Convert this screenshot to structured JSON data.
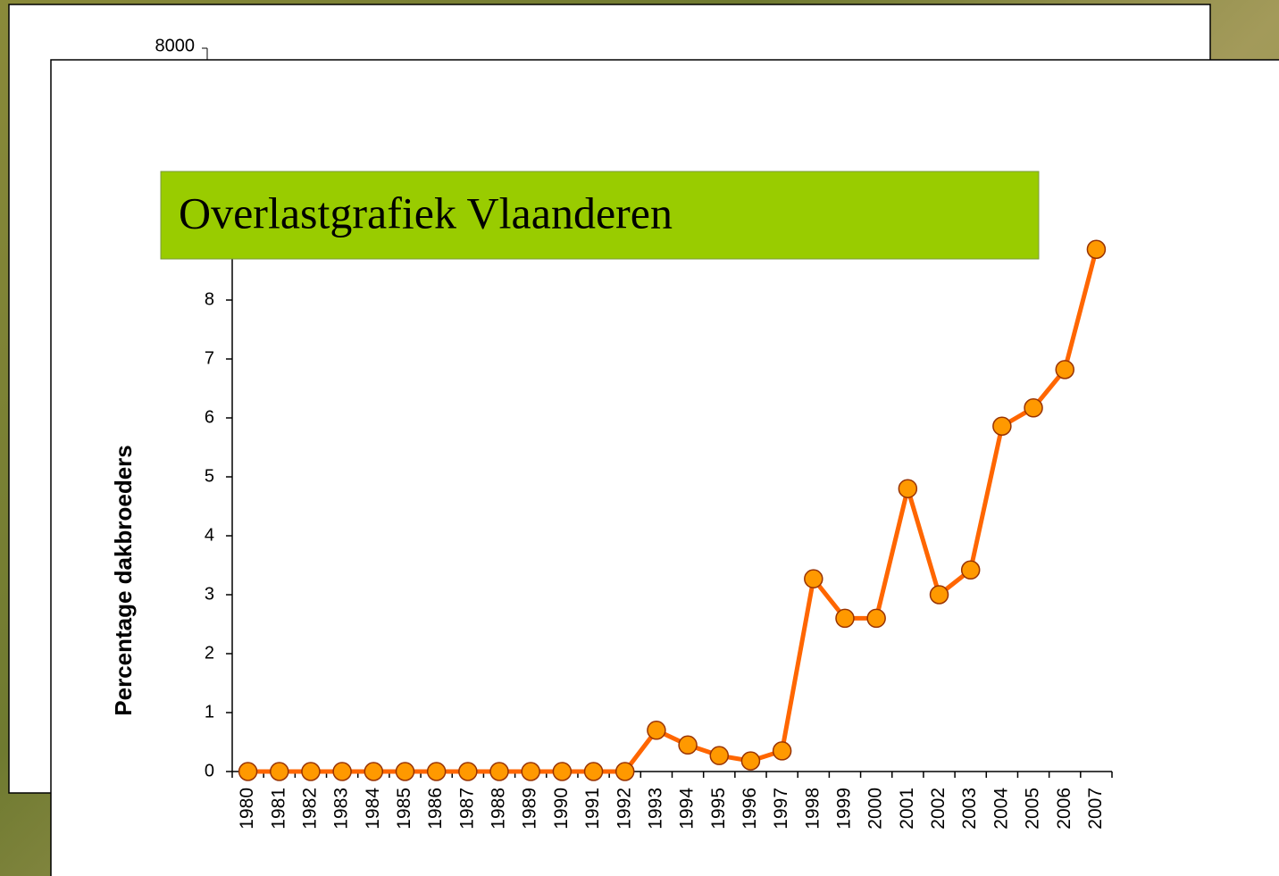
{
  "background_panel": {
    "tick_label": 8000
  },
  "chart_data": {
    "type": "line",
    "title": "Overlastgrafiek Vlaanderen",
    "y_label": "Percentage dakbroeders",
    "categories": [
      "1980",
      "1981",
      "1982",
      "1983",
      "1984",
      "1985",
      "1986",
      "1987",
      "1988",
      "1989",
      "1990",
      "1991",
      "1992",
      "1993",
      "1994",
      "1995",
      "1996",
      "1997",
      "1998",
      "1999",
      "2000",
      "2001",
      "2002",
      "2003",
      "2004",
      "2005",
      "2006",
      "2007"
    ],
    "series": [
      {
        "name": "Percentage dakbroeders",
        "color": "#ff6600",
        "values": [
          0,
          0,
          0,
          0,
          0,
          0,
          0,
          0,
          0,
          0,
          0,
          0,
          0,
          0.7,
          0.45,
          0.27,
          0.18,
          0.35,
          3.27,
          2.6,
          2.6,
          4.8,
          3.0,
          3.42,
          5.86,
          6.17,
          6.82,
          8.86
        ]
      }
    ],
    "marker_color": "#ff9900",
    "ylim": [
      0,
      9
    ],
    "yticks": [
      0,
      1,
      2,
      3,
      4,
      5,
      6,
      7,
      8
    ],
    "grid": false
  }
}
